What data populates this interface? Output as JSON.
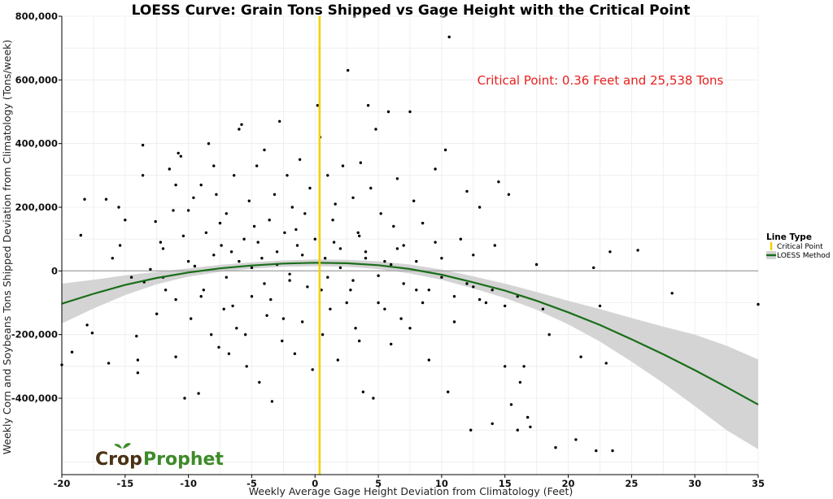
{
  "chart_data": {
    "type": "scatter",
    "title": "LOESS Curve: Grain Tons Shipped vs Gage Height with the Critical Point",
    "xlabel": "Weekly Average Gage Height Deviation from Climatology (Feet)",
    "ylabel": "Weekly Corn and Soybeans Tons Shipped Deviation from Climatology (Tons/week)",
    "xlim": [
      -20,
      35
    ],
    "ylim": [
      -640000,
      800000
    ],
    "x_ticks": [
      -20,
      -15,
      -10,
      -5,
      0,
      5,
      10,
      15,
      20,
      25,
      30,
      35
    ],
    "x_tick_labels": [
      "-20",
      "-15",
      "-10",
      "-5",
      "0",
      "5",
      "10",
      "15",
      "20",
      "25",
      "30",
      "35"
    ],
    "y_ticks": [
      -400000,
      -200000,
      0,
      200000,
      400000,
      600000,
      800000
    ],
    "y_tick_labels": [
      "-400,000",
      "-200,000",
      "0",
      "200,000",
      "400,000",
      "600,000",
      "800,000"
    ],
    "grid": true,
    "zero_line": 0,
    "legend": {
      "title": "Line Type",
      "placement": "right",
      "items": [
        {
          "label": "Critical Point",
          "color": "#f5d000"
        },
        {
          "label": "LOESS Method",
          "color": "#1a6e1a"
        }
      ]
    },
    "critical_point": {
      "x": 0.36,
      "y": 25538,
      "color": "#f5d000"
    },
    "annotation": "Critical Point: 0.36 Feet and 25,538 Tons",
    "loess_color": "#1a6e1a",
    "band_color": "#d4d4d4",
    "loess_curve": [
      {
        "x": -20,
        "y": -103000,
        "lo": -165000,
        "hi": -40000
      },
      {
        "x": -17.5,
        "y": -72000,
        "lo": -118000,
        "hi": -28000
      },
      {
        "x": -15,
        "y": -44000,
        "lo": -76000,
        "hi": -14000
      },
      {
        "x": -12.5,
        "y": -22000,
        "lo": -42000,
        "hi": -3000
      },
      {
        "x": -10,
        "y": -5000,
        "lo": -18000,
        "hi": 8000
      },
      {
        "x": -7.5,
        "y": 8000,
        "lo": -3000,
        "hi": 19000
      },
      {
        "x": -5,
        "y": 17000,
        "lo": 7000,
        "hi": 27000
      },
      {
        "x": -2.5,
        "y": 23000,
        "lo": 13000,
        "hi": 33000
      },
      {
        "x": 0,
        "y": 25500,
        "lo": 15000,
        "hi": 36000
      },
      {
        "x": 2.5,
        "y": 24000,
        "lo": 13000,
        "hi": 35000
      },
      {
        "x": 5,
        "y": 18000,
        "lo": 6000,
        "hi": 30000
      },
      {
        "x": 7.5,
        "y": 6000,
        "lo": -8000,
        "hi": 20000
      },
      {
        "x": 10,
        "y": -12000,
        "lo": -28000,
        "hi": 4000
      },
      {
        "x": 12.5,
        "y": -36000,
        "lo": -55000,
        "hi": -17000
      },
      {
        "x": 15,
        "y": -62000,
        "lo": -85000,
        "hi": -40000
      },
      {
        "x": 17.5,
        "y": -94000,
        "lo": -122000,
        "hi": -66000
      },
      {
        "x": 20,
        "y": -130000,
        "lo": -168000,
        "hi": -94000
      },
      {
        "x": 22.5,
        "y": -170000,
        "lo": -222000,
        "hi": -120000
      },
      {
        "x": 25,
        "y": -215000,
        "lo": -285000,
        "hi": -148000
      },
      {
        "x": 27.5,
        "y": -262000,
        "lo": -352000,
        "hi": -175000
      },
      {
        "x": 30,
        "y": -312000,
        "lo": -425000,
        "hi": -200000
      },
      {
        "x": 32.5,
        "y": -365000,
        "lo": -500000,
        "hi": -235000
      },
      {
        "x": 35,
        "y": -420000,
        "lo": -560000,
        "hi": -278000
      }
    ],
    "points": [
      [
        -20,
        -295000
      ],
      [
        -19.2,
        -255000
      ],
      [
        -18.5,
        112000
      ],
      [
        -18.2,
        225000
      ],
      [
        -18,
        -170000
      ],
      [
        -17.6,
        -195000
      ],
      [
        -16.3,
        -290000
      ],
      [
        -16.5,
        225000
      ],
      [
        -16,
        40000
      ],
      [
        -15.4,
        80000
      ],
      [
        -15.5,
        200000
      ],
      [
        -15,
        160000
      ],
      [
        -14.5,
        -20000
      ],
      [
        -14.1,
        -205000
      ],
      [
        -14,
        -280000
      ],
      [
        -14,
        -320000
      ],
      [
        -13.6,
        395000
      ],
      [
        -13.6,
        300000
      ],
      [
        -13.5,
        -35000
      ],
      [
        -13,
        5000
      ],
      [
        -12.6,
        155000
      ],
      [
        -12.5,
        -135000
      ],
      [
        -12.2,
        90000
      ],
      [
        -12,
        70000
      ],
      [
        -11.8,
        -60000
      ],
      [
        -11.5,
        320000
      ],
      [
        -11.2,
        190000
      ],
      [
        -11,
        270000
      ],
      [
        -11,
        -270000
      ],
      [
        -10.8,
        370000
      ],
      [
        -10.6,
        360000
      ],
      [
        -10.4,
        110000
      ],
      [
        -10.3,
        -400000
      ],
      [
        -10,
        190000
      ],
      [
        -9.8,
        -150000
      ],
      [
        -9.6,
        230000
      ],
      [
        -9.5,
        15000
      ],
      [
        -9.2,
        -385000
      ],
      [
        -9,
        270000
      ],
      [
        -8.8,
        -60000
      ],
      [
        -8.6,
        120000
      ],
      [
        -8.4,
        400000
      ],
      [
        -8.2,
        -200000
      ],
      [
        -8,
        330000
      ],
      [
        -7.8,
        240000
      ],
      [
        -7.6,
        -240000
      ],
      [
        -7.4,
        80000
      ],
      [
        -7.2,
        -120000
      ],
      [
        -7,
        180000
      ],
      [
        -6.8,
        -260000
      ],
      [
        -6.6,
        60000
      ],
      [
        -6.4,
        300000
      ],
      [
        -6.2,
        -180000
      ],
      [
        -6,
        445000
      ],
      [
        -5.8,
        460000
      ],
      [
        -5.6,
        100000
      ],
      [
        -5.4,
        -300000
      ],
      [
        -5.2,
        220000
      ],
      [
        -5,
        -80000
      ],
      [
        -4.8,
        140000
      ],
      [
        -4.6,
        330000
      ],
      [
        -4.4,
        -350000
      ],
      [
        -4.2,
        40000
      ],
      [
        -4,
        380000
      ],
      [
        -3.8,
        -140000
      ],
      [
        -3.6,
        160000
      ],
      [
        -3.4,
        -410000
      ],
      [
        -3.2,
        240000
      ],
      [
        -3,
        60000
      ],
      [
        -2.8,
        470000
      ],
      [
        -2.6,
        -220000
      ],
      [
        -2.4,
        120000
      ],
      [
        -2.2,
        300000
      ],
      [
        -2,
        -30000
      ],
      [
        -1.8,
        200000
      ],
      [
        -1.6,
        -260000
      ],
      [
        -1.4,
        80000
      ],
      [
        -1.2,
        350000
      ],
      [
        -1,
        -160000
      ],
      [
        -0.8,
        180000
      ],
      [
        -0.6,
        -50000
      ],
      [
        -0.4,
        260000
      ],
      [
        -0.2,
        -310000
      ],
      [
        0,
        100000
      ],
      [
        0.2,
        520000
      ],
      [
        0.4,
        420000
      ],
      [
        0.6,
        -200000
      ],
      [
        0.8,
        40000
      ],
      [
        1,
        300000
      ],
      [
        1.2,
        -120000
      ],
      [
        1.4,
        160000
      ],
      [
        1.6,
        210000
      ],
      [
        1.8,
        -280000
      ],
      [
        2,
        70000
      ],
      [
        2.2,
        330000
      ],
      [
        2.6,
        630000
      ],
      [
        2.8,
        -60000
      ],
      [
        3,
        230000
      ],
      [
        3.2,
        -180000
      ],
      [
        3.4,
        120000
      ],
      [
        3.6,
        340000
      ],
      [
        3.8,
        -380000
      ],
      [
        4,
        60000
      ],
      [
        4.2,
        520000
      ],
      [
        4.4,
        260000
      ],
      [
        4.6,
        -400000
      ],
      [
        4.8,
        445000
      ],
      [
        5,
        -100000
      ],
      [
        5.2,
        180000
      ],
      [
        5.5,
        30000
      ],
      [
        5.8,
        500000
      ],
      [
        6,
        -230000
      ],
      [
        6.2,
        140000
      ],
      [
        6.5,
        290000
      ],
      [
        6.8,
        -150000
      ],
      [
        7,
        80000
      ],
      [
        7.5,
        500000
      ],
      [
        7.8,
        220000
      ],
      [
        8,
        -60000
      ],
      [
        8.5,
        150000
      ],
      [
        9,
        -280000
      ],
      [
        9.5,
        320000
      ],
      [
        10,
        40000
      ],
      [
        10.3,
        380000
      ],
      [
        10.5,
        -380000
      ],
      [
        10.6,
        735000
      ],
      [
        11,
        -160000
      ],
      [
        11.5,
        100000
      ],
      [
        12,
        250000
      ],
      [
        12.3,
        -500000
      ],
      [
        12.5,
        -50000
      ],
      [
        13,
        200000
      ],
      [
        13.5,
        -100000
      ],
      [
        14,
        -480000
      ],
      [
        14.2,
        80000
      ],
      [
        14.5,
        280000
      ],
      [
        15,
        -300000
      ],
      [
        15.3,
        240000
      ],
      [
        15.5,
        -420000
      ],
      [
        16,
        -500000
      ],
      [
        16.2,
        -350000
      ],
      [
        16.5,
        -300000
      ],
      [
        16.8,
        -460000
      ],
      [
        17,
        -490000
      ],
      [
        17.5,
        20000
      ],
      [
        18,
        -120000
      ],
      [
        18.5,
        -200000
      ],
      [
        19,
        -555000
      ],
      [
        20.6,
        -530000
      ],
      [
        21,
        -270000
      ],
      [
        22,
        10000
      ],
      [
        22.2,
        -565000
      ],
      [
        22.5,
        -110000
      ],
      [
        23,
        -290000
      ],
      [
        23.3,
        60000
      ],
      [
        23.5,
        -565000
      ],
      [
        25.5,
        65000
      ],
      [
        28.2,
        -70000
      ],
      [
        35,
        -105000
      ],
      [
        -8,
        50000
      ],
      [
        -7,
        -20000
      ],
      [
        -6,
        30000
      ],
      [
        -5,
        10000
      ],
      [
        -4,
        -40000
      ],
      [
        -3,
        20000
      ],
      [
        -2,
        -10000
      ],
      [
        -1,
        50000
      ],
      [
        1,
        -20000
      ],
      [
        2,
        10000
      ],
      [
        3,
        -30000
      ],
      [
        4,
        40000
      ],
      [
        5,
        -15000
      ],
      [
        6,
        20000
      ],
      [
        7,
        -40000
      ],
      [
        8,
        30000
      ],
      [
        9,
        -60000
      ],
      [
        10,
        -20000
      ],
      [
        11,
        -80000
      ],
      [
        12,
        -40000
      ],
      [
        13,
        -90000
      ],
      [
        14,
        -60000
      ],
      [
        15,
        -110000
      ],
      [
        16,
        -80000
      ],
      [
        -9,
        -80000
      ],
      [
        -10,
        30000
      ],
      [
        -11,
        -90000
      ],
      [
        -12,
        -20000
      ],
      [
        -6.5,
        -110000
      ],
      [
        -3.5,
        -90000
      ],
      [
        0.5,
        -60000
      ],
      [
        2.5,
        -100000
      ],
      [
        5.5,
        -120000
      ],
      [
        8.5,
        -100000
      ],
      [
        -7.5,
        150000
      ],
      [
        -4.5,
        90000
      ],
      [
        -1.5,
        130000
      ],
      [
        1.5,
        90000
      ],
      [
        3.5,
        110000
      ],
      [
        6.5,
        70000
      ],
      [
        9.5,
        90000
      ],
      [
        12.5,
        50000
      ],
      [
        -5.5,
        -200000
      ],
      [
        -2.5,
        -150000
      ],
      [
        3.5,
        -220000
      ],
      [
        7.5,
        -180000
      ]
    ]
  },
  "logo": {
    "part1": "Crop",
    "part2": "Prophet"
  }
}
